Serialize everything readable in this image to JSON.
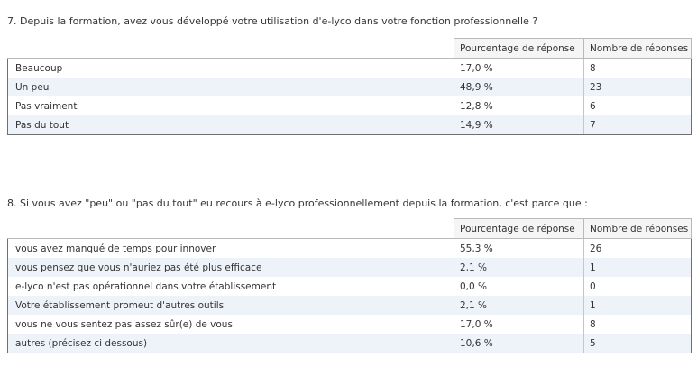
{
  "q7": {
    "title": "7. Depuis la formation, avez vous développé votre utilisation d'e-lyco dans votre fonction professionnelle ?",
    "col_pct": "Pourcentage de réponse",
    "col_num": "Nombre de réponses",
    "rows": [
      {
        "label": "Beaucoup",
        "pct": "17,0 %",
        "num": "8"
      },
      {
        "label": "Un peu",
        "pct": "48,9 %",
        "num": "23"
      },
      {
        "label": "Pas vraiment",
        "pct": "12,8 %",
        "num": "6"
      },
      {
        "label": "Pas du tout",
        "pct": "14,9 %",
        "num": "7"
      }
    ]
  },
  "q8": {
    "title": "8. Si vous avez \"peu\" ou \"pas du tout\" eu recours à e-lyco professionnellement depuis la formation, c'est parce que :",
    "col_pct": "Pourcentage de réponse",
    "col_num": "Nombre de réponses",
    "rows": [
      {
        "label": "vous avez manqué de temps pour innover",
        "pct": "55,3 %",
        "num": "26"
      },
      {
        "label": "vous pensez que vous n'auriez pas été plus efficace",
        "pct": "2,1 %",
        "num": "1"
      },
      {
        "label": "e-lyco n'est pas opérationnel dans votre établissement",
        "pct": "0,0 %",
        "num": "0"
      },
      {
        "label": "Votre établissement promeut d'autres outils",
        "pct": "2,1 %",
        "num": "1"
      },
      {
        "label": "vous ne vous sentez pas assez sûr(e) de vous",
        "pct": "17,0 %",
        "num": "8"
      },
      {
        "label": "autres (précisez ci dessous)",
        "pct": "10,6 %",
        "num": "5"
      }
    ]
  }
}
